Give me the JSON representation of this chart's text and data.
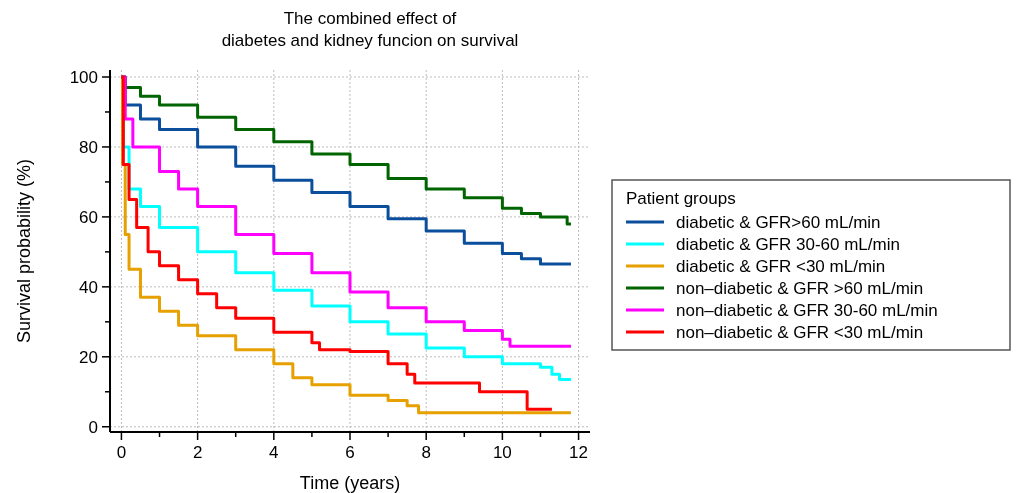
{
  "chart_data": {
    "type": "step",
    "title": "The combined effect of\ndiabetes and kidney funcion on survival",
    "xlabel": "Time (years)",
    "ylabel": "Survival probability (%)",
    "legend_title": "Patient groups",
    "xlim": [
      -0.3,
      12.3
    ],
    "ylim": [
      -1.5,
      102
    ],
    "xticks": [
      0,
      {
        "value": 1,
        "label": null
      },
      2,
      {
        "value": 3,
        "label": null
      },
      4,
      {
        "value": 5,
        "label": null
      },
      6,
      {
        "value": 7,
        "label": null
      },
      8,
      {
        "value": 9,
        "label": null
      },
      10,
      {
        "value": 11,
        "label": null
      },
      12
    ],
    "yticks": [
      0,
      {
        "value": 10,
        "label": null
      },
      20,
      {
        "value": 30,
        "label": null
      },
      40,
      {
        "value": 50,
        "label": null
      },
      60,
      {
        "value": 70,
        "label": null
      },
      80,
      {
        "value": 90,
        "label": null
      },
      100
    ],
    "grid": true,
    "legend": "right",
    "line_style": "solid",
    "series": [
      {
        "name": "diabetic & GFR>60 mL/min",
        "color": "#0b4f9c",
        "x": [
          0,
          0.1,
          0.5,
          1,
          2,
          3,
          4,
          5,
          6,
          7,
          8,
          9,
          10,
          10.5,
          11,
          11.8
        ],
        "values": [
          100,
          92,
          88,
          85,
          80,
          74.5,
          70.5,
          67,
          63,
          59.5,
          56,
          52.5,
          49.5,
          48,
          46.5,
          46.5
        ]
      },
      {
        "name": "diabetic & GFR 30-60 mL/min",
        "color": "#00ffff",
        "x": [
          0,
          0.05,
          0.2,
          0.5,
          1,
          2,
          3,
          4,
          5,
          6,
          7,
          8,
          9,
          10,
          11,
          11.3,
          11.5,
          11.8
        ],
        "values": [
          100,
          80,
          68,
          63,
          57,
          50,
          44,
          39,
          34.5,
          30,
          26.5,
          22.5,
          20,
          18,
          17,
          15,
          13.5,
          13.5
        ]
      },
      {
        "name": "diabetic & GFR <30 mL/min",
        "color": "#e6a000",
        "x": [
          0,
          0.03,
          0.1,
          0.2,
          0.5,
          1,
          1.5,
          2,
          3,
          4,
          4.5,
          5,
          6,
          7,
          7.5,
          7.8,
          11.8
        ],
        "values": [
          100,
          75,
          55,
          45,
          37,
          33,
          29,
          26,
          22,
          18,
          14,
          12,
          9,
          7.5,
          6,
          4,
          4
        ]
      },
      {
        "name": "non–diabetic & GFR >60 mL/min",
        "color": "#006400",
        "x": [
          0,
          0.1,
          0.5,
          1,
          2,
          3,
          4,
          5,
          6,
          7,
          8,
          9,
          10,
          10.5,
          11,
          11.7,
          11.8
        ],
        "values": [
          100,
          97,
          94.5,
          92,
          88.5,
          85,
          81.5,
          78,
          75,
          71,
          68,
          65.5,
          62.5,
          61,
          60,
          58,
          58
        ]
      },
      {
        "name": "non–diabetic & GFR 30-60 mL/min",
        "color": "#ff00ff",
        "x": [
          0,
          0.1,
          0.3,
          1,
          1.5,
          2,
          3,
          4,
          5,
          6,
          7,
          8,
          9,
          10,
          10.2,
          11.8
        ],
        "values": [
          100,
          88,
          80,
          73,
          68,
          63,
          55,
          49.5,
          44,
          38.5,
          34,
          30,
          27.5,
          25,
          23,
          23
        ]
      },
      {
        "name": "non–diabetic & GFR <30 mL/min",
        "color": "#ff0000",
        "x": [
          0,
          0.05,
          0.2,
          0.4,
          0.7,
          1,
          1.5,
          2,
          2.5,
          3,
          4,
          5,
          5.2,
          6,
          7,
          7.5,
          7.7,
          9.4,
          10.65,
          11.3
        ],
        "values": [
          100,
          75,
          65,
          57,
          50,
          46,
          42,
          38,
          34,
          31,
          27,
          24,
          22,
          21.5,
          18,
          15,
          12.5,
          10,
          5,
          5
        ]
      }
    ]
  }
}
